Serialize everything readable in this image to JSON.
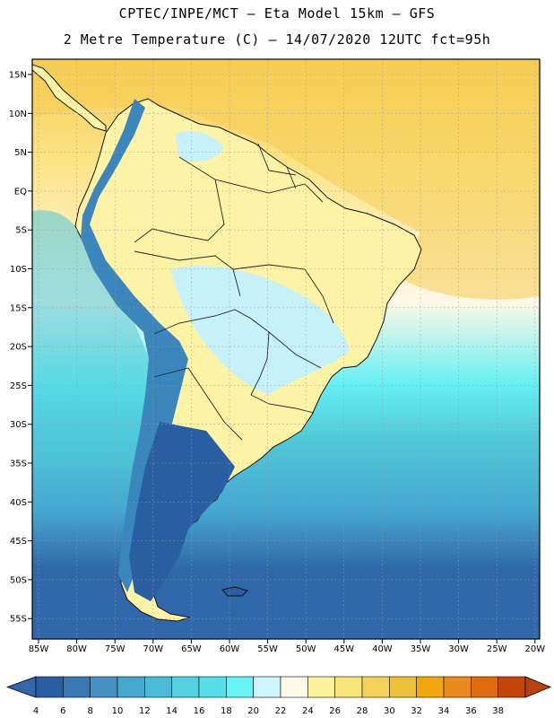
{
  "header": {
    "line1": "CPTEC/INPE/MCT –  Eta Model 15km – GFS",
    "line2": "2 Metre Temperature (C) – 14/07/2020 12UTC fct=95h"
  },
  "map": {
    "lat_labels": [
      "15N",
      "10N",
      "5N",
      "EQ",
      "5S",
      "10S",
      "15S",
      "20S",
      "25S",
      "30S",
      "35S",
      "40S",
      "45S",
      "50S",
      "55S"
    ],
    "lon_labels": [
      "85W",
      "80W",
      "75W",
      "70W",
      "65W",
      "60W",
      "55W",
      "50W",
      "45W",
      "40W",
      "35W",
      "30W",
      "25W",
      "20W"
    ]
  },
  "colorbar": {
    "levels": [
      "4",
      "6",
      "8",
      "10",
      "12",
      "14",
      "16",
      "18",
      "20",
      "22",
      "24",
      "26",
      "28",
      "30",
      "32",
      "34",
      "36",
      "38"
    ],
    "colors": [
      "#2a5ea3",
      "#3a78b3",
      "#4690c2",
      "#46a7cf",
      "#4bbcd8",
      "#55cfe2",
      "#58e0ea",
      "#66f4f6",
      "#cdf4fa",
      "#fdf8e8",
      "#fdf39a",
      "#f9e57c",
      "#f4d25a",
      "#eec13a",
      "#f4a70d",
      "#ea8a1b",
      "#df6b0e",
      "#c54708"
    ],
    "under_color": "#3366aa",
    "over_color": "#b8420e"
  },
  "field_colors": {
    "ocean_north": "#f6cc54",
    "ocean_mid": "#fbe487",
    "ocean_pale": "#fdf8e8",
    "ocean_cyan": "#66f0f4",
    "ocean_cool": "#4fc7d8",
    "ocean_mid_blue": "#46a7cf",
    "ocean_south": "#2f67aa",
    "land_warm": "#fdf3a6",
    "land_pale": "#fdf8e8",
    "land_cyan": "#c6f1f8",
    "andes": "#3a86bd",
    "patagonia": "#2a5ea3",
    "coast": "#111111",
    "border": "#222222",
    "grid": "#9a9a9a"
  }
}
